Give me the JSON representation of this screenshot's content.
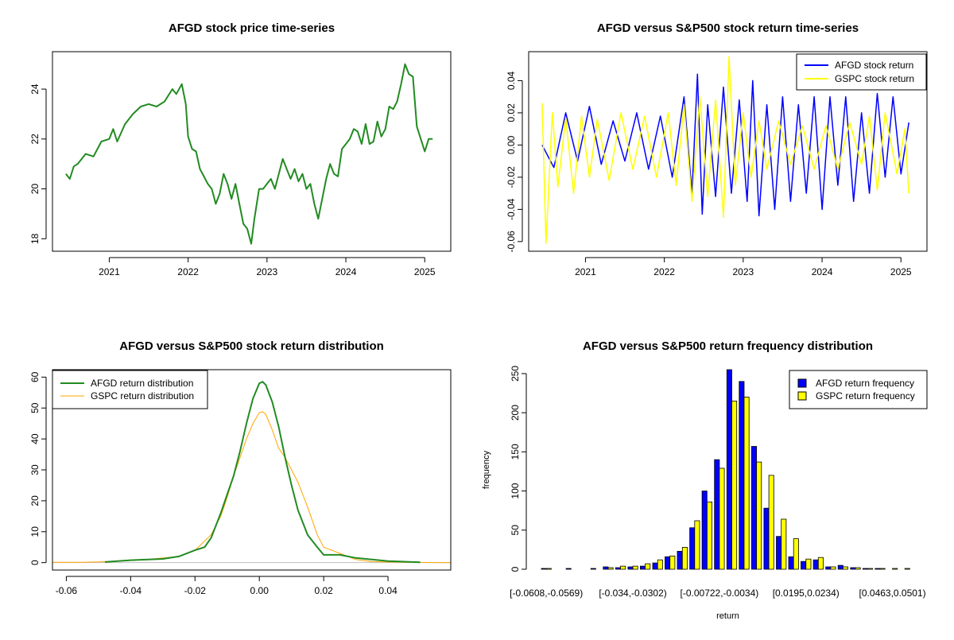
{
  "colors": {
    "afgd_line": "#228B22",
    "afgd_bar": "#0000FF",
    "gspc": "#FFFF00",
    "gspc_density": "#FFA500",
    "axis": "#000000",
    "zero_line": "#BEBEBE"
  },
  "chart_data": [
    {
      "id": "price",
      "type": "line",
      "title": "AFGD stock price time-series",
      "xlabel": "",
      "ylabel": "",
      "x_ticks": [
        "2021",
        "2022",
        "2023",
        "2024",
        "2025"
      ],
      "x_tick_years": [
        2021,
        2022,
        2023,
        2024,
        2025
      ],
      "y_ticks": [
        18,
        20,
        22,
        24
      ],
      "xlim": [
        2020.28,
        2025.33
      ],
      "ylim": [
        17.5,
        25.5
      ],
      "series": [
        {
          "color": "#228B22",
          "x": [
            2020.45,
            2020.5,
            2020.55,
            2020.6,
            2020.7,
            2020.8,
            2020.9,
            2021.0,
            2021.05,
            2021.1,
            2021.2,
            2021.3,
            2021.4,
            2021.5,
            2021.6,
            2021.7,
            2021.8,
            2021.85,
            2021.92,
            2021.97,
            2022.0,
            2022.05,
            2022.1,
            2022.15,
            2022.2,
            2022.25,
            2022.3,
            2022.35,
            2022.4,
            2022.45,
            2022.5,
            2022.55,
            2022.6,
            2022.65,
            2022.7,
            2022.75,
            2022.8,
            2022.84,
            2022.9,
            2022.95,
            2023.0,
            2023.05,
            2023.1,
            2023.15,
            2023.2,
            2023.25,
            2023.3,
            2023.35,
            2023.4,
            2023.45,
            2023.5,
            2023.55,
            2023.6,
            2023.65,
            2023.7,
            2023.75,
            2023.8,
            2023.85,
            2023.9,
            2023.95,
            2024.0,
            2024.05,
            2024.1,
            2024.15,
            2024.2,
            2024.25,
            2024.3,
            2024.35,
            2024.4,
            2024.45,
            2024.5,
            2024.55,
            2024.6,
            2024.65,
            2024.7,
            2024.75,
            2024.8,
            2024.85,
            2024.9,
            2024.95,
            2025.0,
            2025.05,
            2025.1
          ],
          "y": [
            20.6,
            20.4,
            20.9,
            21.0,
            21.4,
            21.3,
            21.9,
            22.0,
            22.4,
            21.9,
            22.6,
            23.0,
            23.3,
            23.4,
            23.3,
            23.5,
            24.0,
            23.8,
            24.2,
            23.4,
            22.1,
            21.6,
            21.5,
            20.8,
            20.5,
            20.2,
            20.0,
            19.4,
            19.8,
            20.6,
            20.2,
            19.6,
            20.2,
            19.4,
            18.6,
            18.4,
            17.8,
            18.8,
            20.0,
            20.0,
            20.2,
            20.4,
            20.0,
            20.6,
            21.2,
            20.8,
            20.4,
            20.8,
            20.3,
            20.6,
            20.0,
            20.2,
            19.4,
            18.8,
            19.6,
            20.4,
            21.0,
            20.6,
            20.5,
            21.6,
            21.8,
            22.0,
            22.4,
            22.3,
            21.8,
            22.6,
            21.8,
            21.9,
            22.7,
            22.1,
            22.4,
            23.3,
            23.2,
            23.5,
            24.2,
            25.0,
            24.6,
            24.5,
            22.5,
            22.0,
            21.5,
            22.0,
            22.0
          ]
        }
      ]
    },
    {
      "id": "returns",
      "type": "line",
      "title": "AFGD versus S&P500 stock return time-series",
      "xlabel": "",
      "ylabel": "",
      "x_ticks": [
        "2021",
        "2022",
        "2023",
        "2024",
        "2025"
      ],
      "x_tick_years": [
        2021,
        2022,
        2023,
        2024,
        2025
      ],
      "y_ticks": [
        "-0.06",
        "-0.04",
        "-0.02",
        "0.00",
        "0.02",
        "0.04"
      ],
      "xlim": [
        2020.28,
        2025.33
      ],
      "ylim": [
        -0.066,
        0.058
      ],
      "legend": "top-right",
      "series": [
        {
          "name": "AFGD stock return",
          "color": "#0000FF",
          "x": [
            2020.45,
            2020.6,
            2020.75,
            2020.9,
            2021.05,
            2021.2,
            2021.35,
            2021.5,
            2021.65,
            2021.8,
            2021.95,
            2022.1,
            2022.25,
            2022.35,
            2022.42,
            2022.48,
            2022.55,
            2022.65,
            2022.75,
            2022.85,
            2022.95,
            2023.05,
            2023.12,
            2023.2,
            2023.3,
            2023.4,
            2023.5,
            2023.6,
            2023.7,
            2023.8,
            2023.9,
            2024.0,
            2024.1,
            2024.2,
            2024.3,
            2024.4,
            2024.5,
            2024.6,
            2024.7,
            2024.8,
            2024.9,
            2025.0,
            2025.1
          ],
          "y": [
            0.0,
            -0.014,
            0.02,
            -0.01,
            0.024,
            -0.012,
            0.015,
            -0.01,
            0.02,
            -0.015,
            0.018,
            -0.02,
            0.03,
            -0.03,
            0.044,
            -0.043,
            0.025,
            -0.032,
            0.036,
            -0.03,
            0.028,
            -0.035,
            0.04,
            -0.044,
            0.025,
            -0.04,
            0.03,
            -0.035,
            0.025,
            -0.03,
            0.03,
            -0.04,
            0.03,
            -0.025,
            0.03,
            -0.035,
            0.02,
            -0.03,
            0.032,
            -0.02,
            0.03,
            -0.018,
            0.014
          ]
        },
        {
          "name": "GSPC stock return",
          "color": "#FFFF00",
          "x": [
            2020.45,
            2020.5,
            2020.58,
            2020.65,
            2020.75,
            2020.85,
            2020.95,
            2021.05,
            2021.15,
            2021.3,
            2021.45,
            2021.6,
            2021.75,
            2021.9,
            2022.05,
            2022.15,
            2022.25,
            2022.35,
            2022.45,
            2022.55,
            2022.65,
            2022.75,
            2022.82,
            2022.9,
            2023.0,
            2023.1,
            2023.2,
            2023.3,
            2023.45,
            2023.6,
            2023.75,
            2023.9,
            2024.05,
            2024.2,
            2024.35,
            2024.5,
            2024.6,
            2024.7,
            2024.8,
            2024.95,
            2025.05,
            2025.1
          ],
          "y": [
            0.026,
            -0.061,
            0.02,
            -0.026,
            0.017,
            -0.03,
            0.018,
            -0.02,
            0.016,
            -0.022,
            0.02,
            -0.015,
            0.018,
            -0.02,
            0.02,
            -0.025,
            0.025,
            -0.035,
            0.03,
            -0.032,
            0.028,
            -0.045,
            0.055,
            -0.025,
            0.02,
            -0.02,
            0.015,
            -0.015,
            0.015,
            -0.012,
            0.012,
            -0.015,
            0.012,
            -0.015,
            0.014,
            -0.012,
            0.018,
            -0.028,
            0.02,
            -0.018,
            0.01,
            -0.03
          ]
        }
      ]
    },
    {
      "id": "density",
      "type": "line",
      "title": "AFGD versus S&P500 stock return distribution",
      "xlabel": "",
      "ylabel": "",
      "x_ticks": [
        "-0.06",
        "-0.04",
        "-0.02",
        "0.00",
        "0.02",
        "0.04"
      ],
      "y_ticks": [
        0,
        10,
        20,
        30,
        40,
        50,
        60
      ],
      "xlim": [
        -0.0643,
        0.0595
      ],
      "ylim": [
        -2.4,
        62.4
      ],
      "legend": "top-left",
      "series": [
        {
          "name": "AFGD return distribution",
          "color": "#228B22",
          "x": [
            -0.048,
            -0.04,
            -0.03,
            -0.025,
            -0.02,
            -0.017,
            -0.015,
            -0.012,
            -0.01,
            -0.008,
            -0.006,
            -0.004,
            -0.002,
            0.0,
            0.001,
            0.002,
            0.004,
            0.006,
            0.008,
            0.01,
            0.012,
            0.015,
            0.018,
            0.02,
            0.025,
            0.03,
            0.035,
            0.04,
            0.05
          ],
          "y": [
            0.2,
            0.8,
            1.2,
            2.0,
            4.0,
            5.0,
            8.0,
            16.0,
            22.0,
            28.0,
            36.0,
            45.0,
            53.0,
            58.0,
            58.5,
            57.5,
            52.0,
            44.0,
            34.0,
            25.0,
            17.0,
            9.0,
            5.0,
            2.5,
            2.5,
            1.5,
            1.0,
            0.5,
            0.1
          ]
        },
        {
          "name": "GSPC return distribution",
          "color": "#FFA500",
          "x": [
            -0.0643,
            -0.055,
            -0.045,
            -0.035,
            -0.025,
            -0.02,
            -0.015,
            -0.012,
            -0.01,
            -0.008,
            -0.006,
            -0.004,
            -0.002,
            0.0,
            0.001,
            0.002,
            0.004,
            0.006,
            0.008,
            0.01,
            0.012,
            0.015,
            0.018,
            0.02,
            0.025,
            0.03,
            0.035,
            0.045,
            0.0595
          ],
          "y": [
            0.1,
            0.1,
            0.4,
            1.0,
            2.0,
            4.0,
            9.0,
            15.0,
            21.0,
            28.0,
            34.0,
            40.0,
            45.0,
            48.5,
            48.8,
            48.0,
            43.0,
            37.0,
            34.0,
            30.0,
            26.0,
            18.0,
            9.0,
            5.0,
            3.0,
            1.0,
            0.3,
            0.1,
            0.0
          ]
        }
      ]
    },
    {
      "id": "frequency",
      "type": "bar",
      "title": "AFGD versus S&P500 return frequency distribution",
      "xlabel": "return",
      "ylabel": "frequency",
      "x_tick_labels": [
        "[-0.0608,-0.0569)",
        "[-0.034,-0.0302)",
        "[-0.00722,-0.0034)",
        "[0.0195,0.0234)",
        "[0.0463,0.0501)"
      ],
      "x_tick_bins": [
        0,
        7,
        14,
        21,
        28
      ],
      "y_ticks": [
        0,
        50,
        100,
        150,
        200,
        250
      ],
      "ylim": [
        0,
        255
      ],
      "legend": "top-right",
      "series": [
        {
          "name": "AFGD return frequency",
          "color": "#0000FF",
          "values": [
            1,
            0,
            1,
            0,
            1,
            3,
            2,
            3,
            4,
            8,
            16,
            23,
            53,
            100,
            140,
            255,
            240,
            157,
            78,
            42,
            16,
            10,
            12,
            3,
            5,
            2,
            1,
            1,
            0,
            0
          ]
        },
        {
          "name": "GSPC return frequency",
          "color": "#FFFF00",
          "values": [
            1,
            0,
            0,
            0,
            0,
            2,
            4,
            4,
            7,
            12,
            17,
            28,
            62,
            86,
            129,
            215,
            220,
            137,
            120,
            64,
            39,
            13,
            15,
            3,
            3,
            2,
            1,
            1,
            1,
            1
          ]
        }
      ]
    }
  ]
}
